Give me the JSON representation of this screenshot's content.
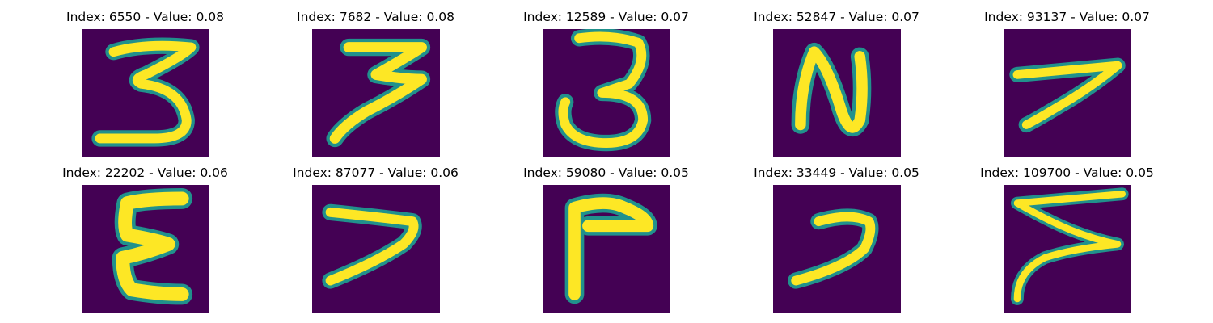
{
  "colors": {
    "background": "#440154",
    "mid": "#21918c",
    "stroke": "#fde725"
  },
  "panels": [
    {
      "title": "Index: 6550 - Value: 0.08",
      "glyph": "three-icon"
    },
    {
      "title": "Index: 7682 - Value: 0.08",
      "glyph": "three-icon"
    },
    {
      "title": "Index: 12589 - Value: 0.07",
      "glyph": "three-icon"
    },
    {
      "title": "Index: 52847 - Value: 0.07",
      "glyph": "n-icon"
    },
    {
      "title": "Index: 93137 - Value: 0.07",
      "glyph": "seven-icon"
    },
    {
      "title": "Index: 22202 - Value: 0.06",
      "glyph": "epsilon-icon"
    },
    {
      "title": "Index: 87077 - Value: 0.06",
      "glyph": "seven-icon"
    },
    {
      "title": "Index: 59080 - Value: 0.05",
      "glyph": "gamma-icon"
    },
    {
      "title": "Index: 33449 - Value: 0.05",
      "glyph": "seven-icon"
    },
    {
      "title": "Index: 109700 - Value: 0.05",
      "glyph": "sigma-icon"
    }
  ]
}
